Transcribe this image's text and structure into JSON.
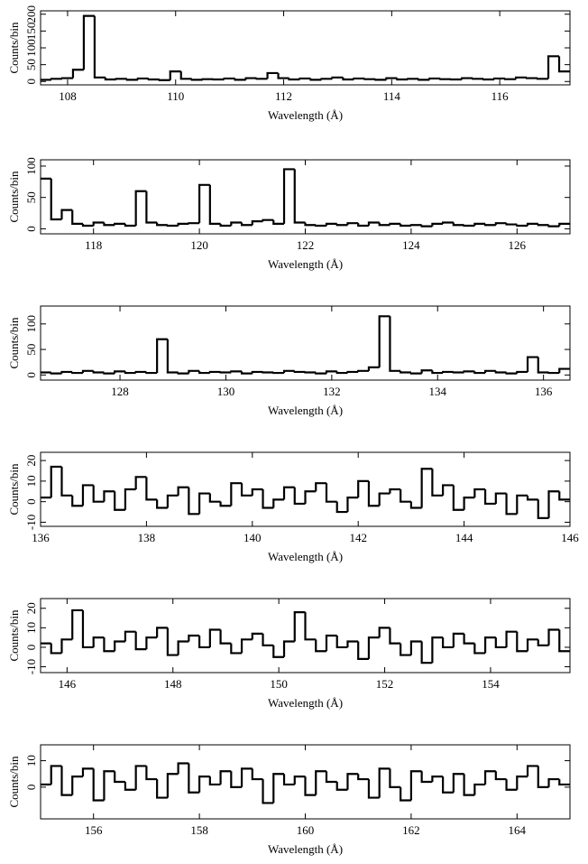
{
  "chart_data": [
    {
      "type": "line",
      "xlabel": "Wavelength (Å)",
      "ylabel": "Counts/bin",
      "color": "#000000",
      "x": [
        107.5,
        107.7,
        107.9,
        108.1,
        108.3,
        108.5,
        108.7,
        108.9,
        109.1,
        109.3,
        109.5,
        109.7,
        109.9,
        110.1,
        110.3,
        110.5,
        110.7,
        110.9,
        111.1,
        111.3,
        111.5,
        111.7,
        111.9,
        112.1,
        112.3,
        112.5,
        112.7,
        112.9,
        113.1,
        113.3,
        113.5,
        113.7,
        113.9,
        114.1,
        114.3,
        114.5,
        114.7,
        114.9,
        115.1,
        115.3,
        115.5,
        115.7,
        115.9,
        116.1,
        116.3,
        116.5,
        116.7,
        116.9,
        117.1
      ],
      "values": [
        5,
        8,
        10,
        35,
        195,
        12,
        6,
        8,
        5,
        9,
        6,
        4,
        30,
        8,
        5,
        7,
        6,
        9,
        5,
        10,
        8,
        25,
        10,
        6,
        9,
        5,
        8,
        12,
        6,
        9,
        7,
        5,
        10,
        6,
        8,
        5,
        9,
        7,
        6,
        10,
        8,
        6,
        9,
        7,
        12,
        10,
        8,
        75,
        30
      ],
      "xlim": [
        107.5,
        117.3
      ],
      "ylim": [
        -10,
        210
      ],
      "xticks": [
        108,
        110,
        112,
        114,
        116
      ],
      "yticks": [
        0,
        50,
        100,
        150,
        200
      ]
    },
    {
      "type": "line",
      "xlabel": "Wavelength (Å)",
      "ylabel": "Counts/bin",
      "color": "#000000",
      "x": [
        117.0,
        117.2,
        117.4,
        117.6,
        117.8,
        118.0,
        118.2,
        118.4,
        118.6,
        118.8,
        119.0,
        119.2,
        119.4,
        119.6,
        119.8,
        120.0,
        120.2,
        120.4,
        120.6,
        120.8,
        121.0,
        121.2,
        121.4,
        121.6,
        121.8,
        122.0,
        122.2,
        122.4,
        122.6,
        122.8,
        123.0,
        123.2,
        123.4,
        123.6,
        123.8,
        124.0,
        124.2,
        124.4,
        124.6,
        124.8,
        125.0,
        125.2,
        125.4,
        125.6,
        125.8,
        126.0,
        126.2,
        126.4,
        126.6,
        126.8
      ],
      "values": [
        80,
        15,
        30,
        8,
        5,
        10,
        6,
        8,
        5,
        60,
        10,
        6,
        5,
        8,
        9,
        70,
        8,
        5,
        10,
        6,
        12,
        14,
        8,
        95,
        10,
        6,
        5,
        8,
        6,
        9,
        5,
        10,
        6,
        8,
        5,
        6,
        4,
        8,
        10,
        6,
        5,
        8,
        6,
        9,
        7,
        5,
        8,
        6,
        4,
        8
      ],
      "xlim": [
        117,
        127
      ],
      "ylim": [
        -8,
        110
      ],
      "xticks": [
        118,
        120,
        122,
        124,
        126
      ],
      "yticks": [
        0,
        50,
        100
      ]
    },
    {
      "type": "line",
      "xlabel": "Wavelength (Å)",
      "ylabel": "Counts/bin",
      "color": "#000000",
      "x": [
        126.5,
        126.7,
        126.9,
        127.1,
        127.3,
        127.5,
        127.7,
        127.9,
        128.1,
        128.3,
        128.5,
        128.7,
        128.9,
        129.1,
        129.3,
        129.5,
        129.7,
        129.9,
        130.1,
        130.3,
        130.5,
        130.7,
        130.9,
        131.1,
        131.3,
        131.5,
        131.7,
        131.9,
        132.1,
        132.3,
        132.5,
        132.7,
        132.9,
        133.1,
        133.3,
        133.5,
        133.7,
        133.9,
        134.1,
        134.3,
        134.5,
        134.7,
        134.9,
        135.1,
        135.3,
        135.5,
        135.7,
        135.9,
        136.1,
        136.3
      ],
      "values": [
        5,
        3,
        6,
        4,
        8,
        5,
        3,
        7,
        4,
        6,
        4,
        70,
        5,
        3,
        8,
        4,
        6,
        5,
        7,
        3,
        6,
        5,
        4,
        8,
        6,
        5,
        3,
        7,
        4,
        6,
        8,
        15,
        115,
        8,
        5,
        3,
        9,
        4,
        6,
        5,
        7,
        4,
        8,
        5,
        3,
        6,
        35,
        5,
        4,
        12
      ],
      "xlim": [
        126.5,
        136.5
      ],
      "ylim": [
        -10,
        135
      ],
      "xticks": [
        128,
        130,
        132,
        134,
        136
      ],
      "yticks": [
        0,
        50,
        100
      ]
    },
    {
      "type": "line",
      "xlabel": "Wavelength (Å)",
      "ylabel": "Counts/bin",
      "color": "#000000",
      "x": [
        136.0,
        136.2,
        136.4,
        136.6,
        136.8,
        137.0,
        137.2,
        137.4,
        137.6,
        137.8,
        138.0,
        138.2,
        138.4,
        138.6,
        138.8,
        139.0,
        139.2,
        139.4,
        139.6,
        139.8,
        140.0,
        140.2,
        140.4,
        140.6,
        140.8,
        141.0,
        141.2,
        141.4,
        141.6,
        141.8,
        142.0,
        142.2,
        142.4,
        142.6,
        142.8,
        143.0,
        143.2,
        143.4,
        143.6,
        143.8,
        144.0,
        144.2,
        144.4,
        144.6,
        144.8,
        145.0,
        145.2,
        145.4,
        145.6,
        145.8
      ],
      "values": [
        2,
        17,
        3,
        -2,
        8,
        0,
        5,
        -4,
        6,
        12,
        1,
        -3,
        3,
        7,
        -6,
        4,
        0,
        -2,
        9,
        3,
        6,
        -3,
        1,
        7,
        -1,
        5,
        9,
        0,
        -5,
        2,
        10,
        -2,
        4,
        6,
        0,
        -3,
        16,
        3,
        8,
        -4,
        2,
        6,
        -1,
        4,
        -6,
        3,
        1,
        -8,
        5,
        1
      ],
      "xlim": [
        136,
        146
      ],
      "ylim": [
        -12,
        24
      ],
      "xticks": [
        136,
        138,
        140,
        142,
        144,
        146
      ],
      "yticks": [
        -10,
        0,
        10,
        20
      ]
    },
    {
      "type": "line",
      "xlabel": "Wavelength (Å)",
      "ylabel": "Counts/bin",
      "color": "#000000",
      "x": [
        145.5,
        145.7,
        145.9,
        146.1,
        146.3,
        146.5,
        146.7,
        146.9,
        147.1,
        147.3,
        147.5,
        147.7,
        147.9,
        148.1,
        148.3,
        148.5,
        148.7,
        148.9,
        149.1,
        149.3,
        149.5,
        149.7,
        149.9,
        150.1,
        150.3,
        150.5,
        150.7,
        150.9,
        151.1,
        151.3,
        151.5,
        151.7,
        151.9,
        152.1,
        152.3,
        152.5,
        152.7,
        152.9,
        153.1,
        153.3,
        153.5,
        153.7,
        153.9,
        154.1,
        154.3,
        154.5,
        154.7,
        154.9,
        155.1,
        155.3
      ],
      "values": [
        2,
        -3,
        4,
        19,
        0,
        5,
        -2,
        3,
        8,
        -1,
        5,
        10,
        -4,
        3,
        6,
        0,
        9,
        2,
        -3,
        4,
        7,
        1,
        -5,
        3,
        18,
        4,
        -2,
        6,
        0,
        3,
        -6,
        5,
        10,
        2,
        -4,
        3,
        -8,
        5,
        0,
        7,
        2,
        -3,
        5,
        0,
        8,
        -2,
        4,
        1,
        9,
        -2
      ],
      "xlim": [
        145.5,
        155.5
      ],
      "ylim": [
        -13,
        25
      ],
      "xticks": [
        146,
        148,
        150,
        152,
        154
      ],
      "yticks": [
        -10,
        0,
        10,
        20
      ]
    },
    {
      "type": "line",
      "xlabel": "Wavelength (Å)",
      "ylabel": "Counts/bin",
      "color": "#000000",
      "x": [
        155.0,
        155.2,
        155.4,
        155.6,
        155.8,
        156.0,
        156.2,
        156.4,
        156.6,
        156.8,
        157.0,
        157.2,
        157.4,
        157.6,
        157.8,
        158.0,
        158.2,
        158.4,
        158.6,
        158.8,
        159.0,
        159.2,
        159.4,
        159.6,
        159.8,
        160.0,
        160.2,
        160.4,
        160.6,
        160.8,
        161.0,
        161.2,
        161.4,
        161.6,
        161.8,
        162.0,
        162.2,
        162.4,
        162.6,
        162.8,
        163.0,
        163.2,
        163.4,
        163.6,
        163.8,
        164.0,
        164.2,
        164.4,
        164.6,
        164.8
      ],
      "values": [
        1,
        8,
        -3,
        4,
        7,
        -5,
        6,
        2,
        -1,
        8,
        3,
        -4,
        5,
        9,
        -2,
        4,
        1,
        6,
        0,
        7,
        3,
        -6,
        5,
        1,
        4,
        -3,
        6,
        2,
        -1,
        5,
        3,
        -4,
        7,
        0,
        -5,
        6,
        2,
        4,
        -2,
        5,
        -3,
        1,
        6,
        3,
        -1,
        4,
        8,
        0,
        3,
        1
      ],
      "xlim": [
        155,
        165
      ],
      "ylim": [
        -12,
        16
      ],
      "xticks": [
        156,
        158,
        160,
        162,
        164
      ],
      "yticks": [
        0,
        10
      ]
    }
  ]
}
